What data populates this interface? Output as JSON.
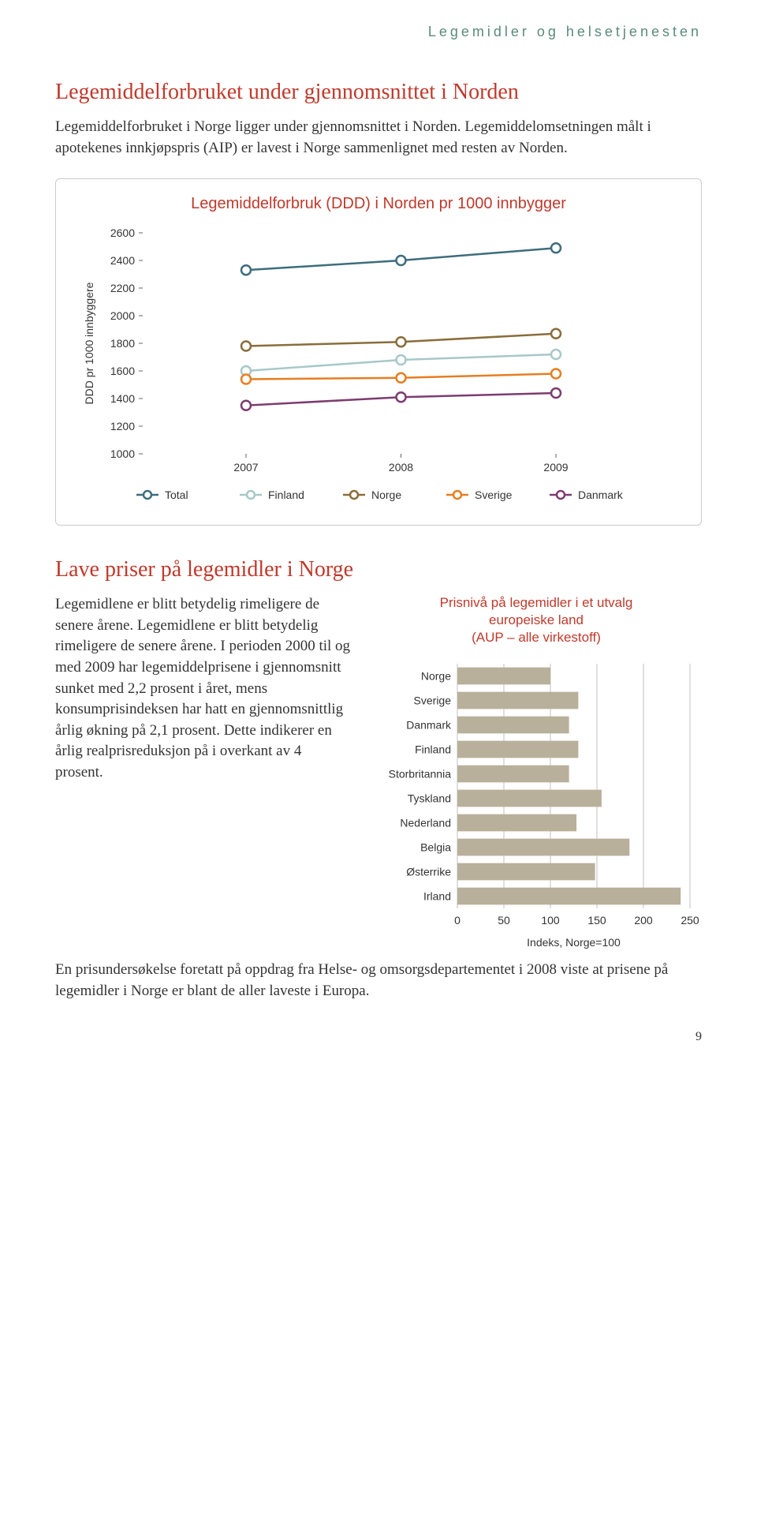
{
  "header": {
    "category": "Legemidler og helsetjenesten"
  },
  "section1": {
    "title": "Legemiddelforbruket under gjennomsnittet i Norden",
    "body": "Legemiddelforbruket i Norge ligger under gjennomsnittet i Norden. Legemiddelomsetningen målt i apotekenes innkjøpspris (AIP) er lavest i Norge sammenlignet med resten av Norden."
  },
  "chart1": {
    "type": "line",
    "title": "Legemiddelforbruk (DDD) i Norden pr 1000 innbygger",
    "ylabel": "DDD pr 1000 innbyggere",
    "years": [
      "2007",
      "2008",
      "2009"
    ],
    "ylim": [
      1000,
      2600
    ],
    "ytick_step": 200,
    "yticks": [
      1000,
      1200,
      1400,
      1600,
      1800,
      2000,
      2200,
      2400,
      2600
    ],
    "series": [
      {
        "name": "Total",
        "color": "#3d6d7d",
        "values": [
          2330,
          2400,
          2490
        ]
      },
      {
        "name": "Finland",
        "color": "#a8c8c8",
        "values": [
          1600,
          1680,
          1720
        ]
      },
      {
        "name": "Norge",
        "color": "#8a6d3b",
        "values": [
          1780,
          1810,
          1870
        ]
      },
      {
        "name": "Sverige",
        "color": "#e67e22",
        "values": [
          1540,
          1550,
          1580
        ]
      },
      {
        "name": "Danmark",
        "color": "#7d3c6f",
        "values": [
          1350,
          1410,
          1440
        ]
      }
    ],
    "marker_radius": 6,
    "line_width": 2.5,
    "grid_color": "#999",
    "tick_color": "#666",
    "label_fontsize": 14,
    "axis_fontsize": 14
  },
  "section2": {
    "title": "Lave priser på legemidler i Norge",
    "body_left": "Legemidlene er blitt betydelig rimeligere de senere årene. Lege­midlene er blitt betydelig rimeligere de senere årene. I perioden 2000 til og med 2009 har lege­middelprisene i gjen­nomsnitt sunket med 2,2 prosent i året, mens konsumprisindeksen har hatt en gjennomsnittlig årlig økning på 2,1 prosent. Dette indikerer en årlig realprisreduksjon på i overkant av 4 prosent.",
    "body_bottom": "En prisundersøkelse foretatt på oppdrag fra Helse- og omsorgsdepartementet i 2008 viste at prisene på legemidler i Norge er blant de aller laveste i Europa."
  },
  "chart2": {
    "type": "bar",
    "title": "Prisnivå på legemidler i et utvalg europeiske land\n(AUP – alle virkestoff)",
    "title_line1": "Prisnivå på legemidler i et utvalg",
    "title_line2": "europeiske land",
    "title_line3": "(AUP – alle virkestoff)",
    "xlabel": "Indeks, Norge=100",
    "xlim": [
      0,
      250
    ],
    "xticks": [
      0,
      50,
      100,
      150,
      200,
      250
    ],
    "bar_color": "#b8b09a",
    "grid_color": "#999",
    "categories": [
      "Norge",
      "Sverige",
      "Danmark",
      "Finland",
      "Storbritannia",
      "Tyskland",
      "Nederland",
      "Belgia",
      "Østerrike",
      "Irland"
    ],
    "values": [
      100,
      130,
      120,
      130,
      120,
      155,
      128,
      185,
      148,
      240
    ],
    "bar_height": 0.7,
    "label_fontsize": 14,
    "axis_fontsize": 14
  },
  "page_number": "9"
}
